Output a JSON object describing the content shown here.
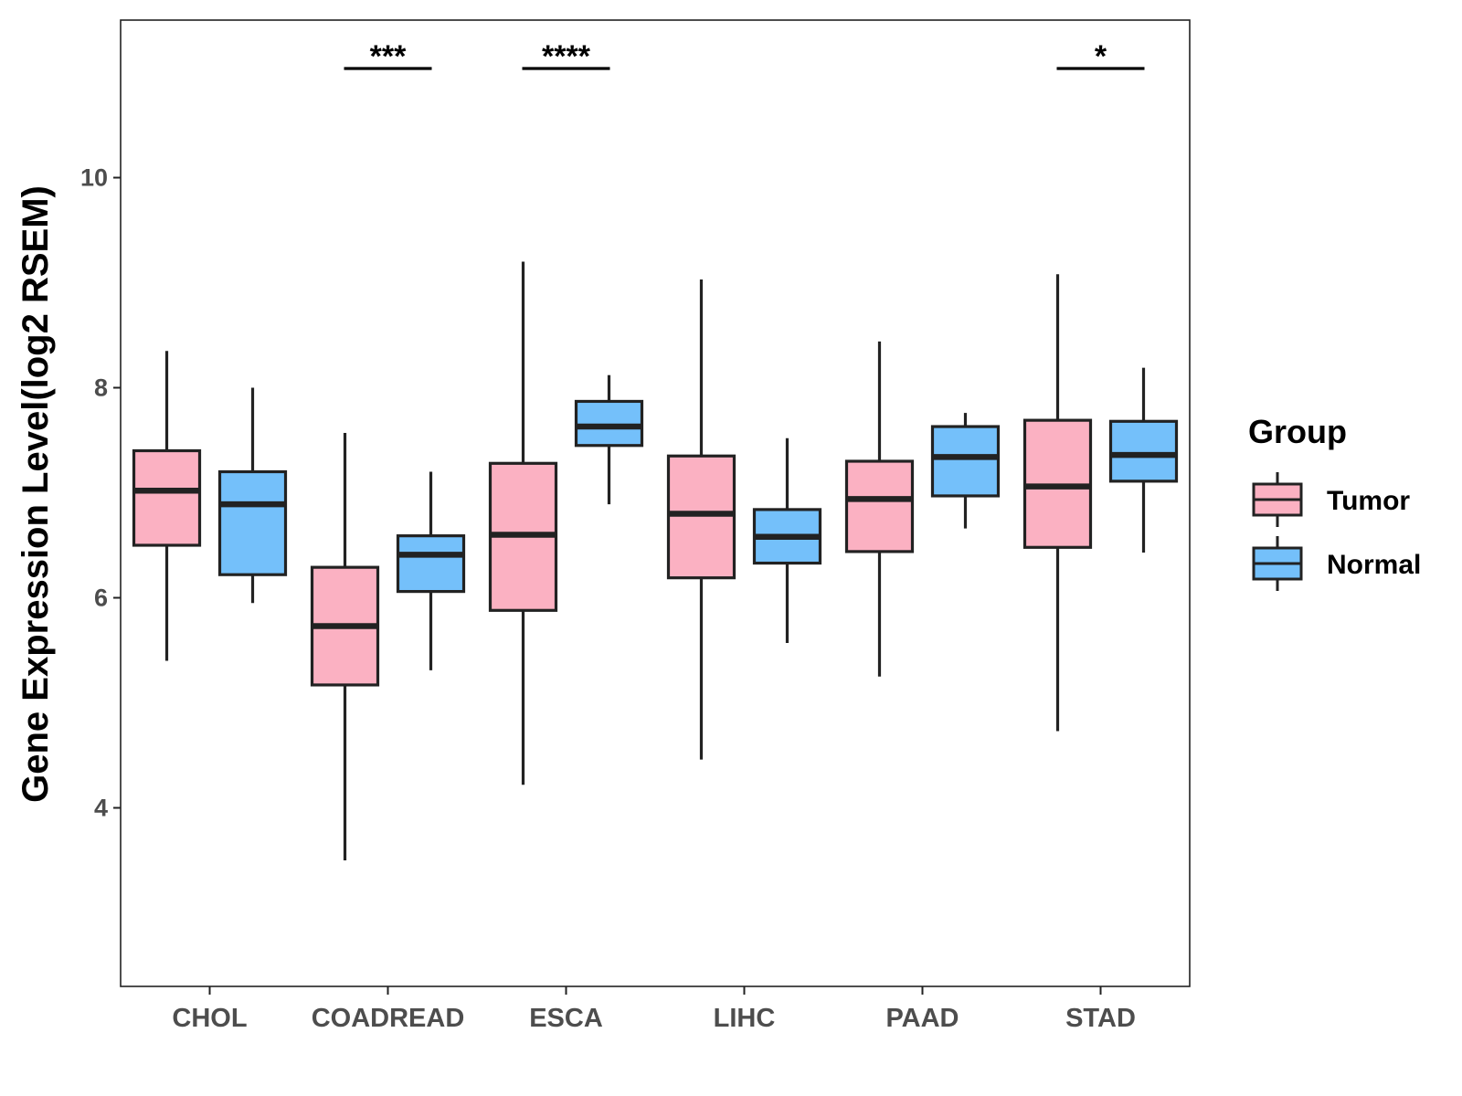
{
  "chart_data": {
    "type": "boxplot",
    "title": "",
    "xlabel": "",
    "ylabel": "Gene Expression Level(log2 RSEM)",
    "ylim": [
      2.3,
      11.5
    ],
    "yticks": [
      4,
      6,
      8,
      10
    ],
    "grid": false,
    "categories": [
      "CHOL",
      "COADREAD",
      "ESCA",
      "LIHC",
      "PAAD",
      "STAD"
    ],
    "legend": {
      "title": "Group",
      "position": "right",
      "entries": [
        {
          "name": "Tumor",
          "color": "#FBB1C2"
        },
        {
          "name": "Normal",
          "color": "#74C0FA"
        }
      ]
    },
    "series": [
      {
        "name": "Tumor",
        "color": "#FBB1C2",
        "boxes": [
          {
            "min": 5.4,
            "q1": 6.5,
            "median": 7.02,
            "q3": 7.4,
            "max": 8.35
          },
          {
            "min": 3.5,
            "q1": 5.17,
            "median": 5.73,
            "q3": 6.29,
            "max": 7.57
          },
          {
            "min": 4.22,
            "q1": 5.88,
            "median": 6.6,
            "q3": 7.28,
            "max": 9.2
          },
          {
            "min": 4.46,
            "q1": 6.19,
            "median": 6.8,
            "q3": 7.35,
            "max": 9.03
          },
          {
            "min": 5.25,
            "q1": 6.44,
            "median": 6.94,
            "q3": 7.3,
            "max": 8.44
          },
          {
            "min": 4.73,
            "q1": 6.48,
            "median": 7.06,
            "q3": 7.69,
            "max": 9.08
          }
        ]
      },
      {
        "name": "Normal",
        "color": "#74C0FA",
        "boxes": [
          {
            "min": 5.95,
            "q1": 6.22,
            "median": 6.89,
            "q3": 7.2,
            "max": 8.0
          },
          {
            "min": 5.31,
            "q1": 6.06,
            "median": 6.41,
            "q3": 6.59,
            "max": 7.2
          },
          {
            "min": 6.89,
            "q1": 7.45,
            "median": 7.63,
            "q3": 7.87,
            "max": 8.12
          },
          {
            "min": 5.57,
            "q1": 6.33,
            "median": 6.58,
            "q3": 6.84,
            "max": 7.52
          },
          {
            "min": 6.66,
            "q1": 6.97,
            "median": 7.34,
            "q3": 7.63,
            "max": 7.76
          },
          {
            "min": 6.43,
            "q1": 7.11,
            "median": 7.36,
            "q3": 7.68,
            "max": 8.19
          }
        ]
      }
    ],
    "significance": [
      {
        "category": "CHOL",
        "label": ""
      },
      {
        "category": "COADREAD",
        "label": "***"
      },
      {
        "category": "ESCA",
        "label": "****"
      },
      {
        "category": "LIHC",
        "label": ""
      },
      {
        "category": "PAAD",
        "label": ""
      },
      {
        "category": "STAD",
        "label": "*"
      }
    ]
  }
}
